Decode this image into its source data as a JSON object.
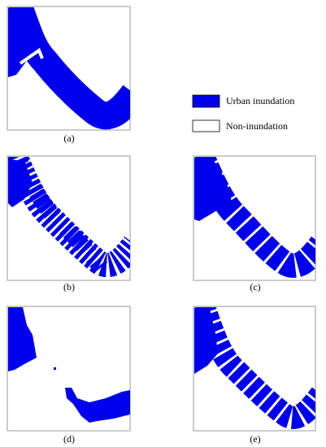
{
  "panels": [
    {
      "label": "(a)"
    },
    {
      "label": "(b)"
    },
    {
      "label": "(c)"
    },
    {
      "label": "(d)"
    },
    {
      "label": "(e)"
    }
  ],
  "legend": [
    {
      "label": "Urban inundation"
    },
    {
      "label": "Non-inundation"
    }
  ]
}
